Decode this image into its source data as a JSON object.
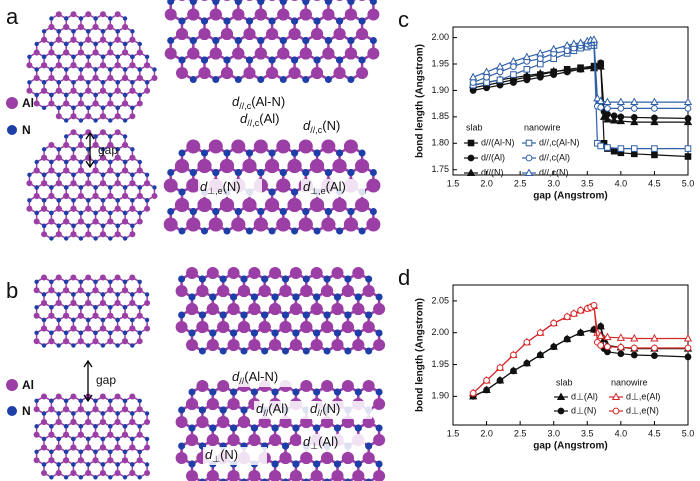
{
  "figure": {
    "panels": [
      {
        "label": "a",
        "legend": [
          "Al",
          "N"
        ],
        "gap_label": "gap",
        "annotations": [
          {
            "symbol": "d",
            "sub": "//,c",
            "text": "(Al-N)"
          },
          {
            "symbol": "d",
            "sub": "//,c",
            "text": "(Al)"
          },
          {
            "symbol": "d",
            "sub": "//,c",
            "text": "(N)"
          },
          {
            "symbol": "d",
            "sub": "⊥,e",
            "text": "(N)"
          },
          {
            "symbol": "d",
            "sub": "⊥,e",
            "text": "(Al)"
          }
        ]
      },
      {
        "label": "b",
        "legend": [
          "Al",
          "N"
        ],
        "gap_label": "gap",
        "annotations": [
          {
            "symbol": "d",
            "sub": "//",
            "text": "(Al-N)"
          },
          {
            "symbol": "d",
            "sub": "//",
            "text": "(Al)"
          },
          {
            "symbol": "d",
            "sub": "//",
            "text": "(N)"
          },
          {
            "symbol": "d",
            "sub": "⊥",
            "text": "(N)"
          },
          {
            "symbol": "d",
            "sub": "⊥",
            "text": "(Al)"
          }
        ]
      }
    ]
  },
  "chart_data": [
    {
      "type": "line",
      "panel_label": "c",
      "x_label": "gap (Angstrom)",
      "y_label": "bond length (Angstrom)",
      "xlim": [
        1.5,
        5.0
      ],
      "ylim": [
        1.74,
        2.02
      ],
      "xticks": [
        1.5,
        {
          "value": 2,
          "label": "2.0"
        },
        2.5,
        {
          "value": 3,
          "label": "3.0"
        },
        3.5,
        {
          "value": 4,
          "label": "4.0"
        },
        4.5,
        {
          "value": 5,
          "label": "5.0"
        }
      ],
      "yticks": [
        1.75,
        {
          "value": 1.8,
          "label": "1.80"
        },
        1.85,
        {
          "value": 1.9,
          "label": "1.90"
        },
        1.95,
        {
          "value": 2,
          "label": "2.00"
        }
      ],
      "legend_groups": [
        "slab",
        "nanowire"
      ],
      "series": [
        {
          "name": "d//(Al-N)",
          "color": "#111111",
          "marker": "square",
          "filled": true,
          "x": [
            1.8,
            2.0,
            2.2,
            2.4,
            2.6,
            2.8,
            3.0,
            3.2,
            3.4,
            3.6,
            3.7,
            3.75,
            3.8,
            3.9,
            4.0,
            4.2,
            4.5,
            5.0
          ],
          "values": [
            1.905,
            1.91,
            1.915,
            1.92,
            1.925,
            1.93,
            1.935,
            1.94,
            1.943,
            1.946,
            1.95,
            1.8,
            1.79,
            1.785,
            1.782,
            1.78,
            1.778,
            1.775
          ]
        },
        {
          "name": "d//(Al)",
          "color": "#111111",
          "marker": "circle",
          "filled": true,
          "x": [
            1.8,
            2.0,
            2.2,
            2.4,
            2.6,
            2.8,
            3.0,
            3.2,
            3.4,
            3.6,
            3.7,
            3.75,
            3.8,
            3.9,
            4.0,
            4.2,
            4.5,
            5.0
          ],
          "values": [
            1.9,
            1.905,
            1.91,
            1.915,
            1.92,
            1.925,
            1.93,
            1.935,
            1.94,
            1.945,
            1.952,
            1.86,
            1.855,
            1.852,
            1.85,
            1.849,
            1.848,
            1.847
          ]
        },
        {
          "name": "d//(N)",
          "color": "#111111",
          "marker": "triangle",
          "filled": true,
          "x": [
            1.8,
            2.0,
            2.2,
            2.4,
            2.6,
            2.8,
            3.0,
            3.2,
            3.4,
            3.6,
            3.7,
            3.75,
            3.8,
            3.9,
            4.0,
            4.2,
            4.5,
            5.0
          ],
          "values": [
            1.91,
            1.915,
            1.92,
            1.924,
            1.928,
            1.932,
            1.936,
            1.938,
            1.94,
            1.942,
            1.945,
            1.85,
            1.845,
            1.843,
            1.842,
            1.84,
            1.84,
            1.84
          ]
        },
        {
          "name": "d//,c(Al-N)",
          "color": "#2f5fa8",
          "marker": "square",
          "filled": false,
          "x": [
            1.8,
            2.0,
            2.2,
            2.4,
            2.6,
            2.8,
            3.0,
            3.2,
            3.3,
            3.4,
            3.5,
            3.55,
            3.6,
            3.65,
            3.7,
            3.8,
            4.0,
            4.2,
            4.5,
            5.0
          ],
          "values": [
            1.91,
            1.915,
            1.92,
            1.93,
            1.94,
            1.95,
            1.96,
            1.97,
            1.975,
            1.98,
            1.982,
            1.985,
            1.985,
            1.8,
            1.795,
            1.792,
            1.79,
            1.79,
            1.79,
            1.79
          ]
        },
        {
          "name": "d//,c(Al)",
          "color": "#2f5fa8",
          "marker": "circle",
          "filled": false,
          "x": [
            1.8,
            2.0,
            2.2,
            2.4,
            2.6,
            2.8,
            3.0,
            3.2,
            3.3,
            3.4,
            3.5,
            3.55,
            3.6,
            3.65,
            3.7,
            3.8,
            4.0,
            4.2,
            4.5,
            5.0
          ],
          "values": [
            1.915,
            1.925,
            1.935,
            1.945,
            1.955,
            1.96,
            1.97,
            1.975,
            1.98,
            1.985,
            1.988,
            1.99,
            1.99,
            1.87,
            1.868,
            1.866,
            1.866,
            1.866,
            1.866,
            1.866
          ]
        },
        {
          "name": "d//,c(N)",
          "color": "#2f5fa8",
          "marker": "triangle",
          "filled": false,
          "x": [
            1.8,
            2.0,
            2.2,
            2.4,
            2.6,
            2.8,
            3.0,
            3.2,
            3.3,
            3.4,
            3.5,
            3.55,
            3.6,
            3.65,
            3.7,
            3.8,
            4.0,
            4.2,
            4.5,
            5.0
          ],
          "values": [
            1.925,
            1.935,
            1.945,
            1.955,
            1.963,
            1.97,
            1.978,
            1.985,
            1.988,
            1.99,
            1.993,
            1.995,
            1.996,
            1.885,
            1.88,
            1.878,
            1.878,
            1.878,
            1.878,
            1.878
          ]
        }
      ]
    },
    {
      "type": "line",
      "panel_label": "d",
      "x_label": "gap (Angstrom)",
      "y_label": "bond length (Angstrom)",
      "xlim": [
        1.5,
        5.0
      ],
      "ylim": [
        1.855,
        2.075
      ],
      "xticks": [
        1.5,
        {
          "value": 2,
          "label": "2.0"
        },
        2.5,
        {
          "value": 3,
          "label": "3.0"
        },
        3.5,
        {
          "value": 4,
          "label": "4.0"
        },
        4.5,
        {
          "value": 5,
          "label": "5.0"
        }
      ],
      "yticks": [
        {
          "value": 1.9,
          "label": "1.90"
        },
        1.95,
        {
          "value": 2,
          "label": "2.00"
        },
        2.05
      ],
      "legend_groups": [
        "slab",
        "nanowire"
      ],
      "series": [
        {
          "name": "d⊥(Al)",
          "color": "#111111",
          "marker": "triangle",
          "filled": true,
          "x": [
            1.8,
            2.0,
            2.2,
            2.4,
            2.6,
            2.8,
            3.0,
            3.2,
            3.4,
            3.6,
            3.7,
            3.75,
            3.8,
            4.0,
            4.2,
            4.5,
            5.0
          ],
          "values": [
            1.9,
            1.91,
            1.925,
            1.94,
            1.952,
            1.965,
            1.978,
            1.99,
            2.0,
            2.005,
            2.01,
            1.99,
            1.98,
            1.977,
            1.975,
            1.975,
            1.975
          ]
        },
        {
          "name": "d⊥(N)",
          "color": "#111111",
          "marker": "circle",
          "filled": true,
          "x": [
            1.8,
            2.0,
            2.2,
            2.4,
            2.6,
            2.8,
            3.0,
            3.2,
            3.4,
            3.6,
            3.7,
            3.75,
            3.8,
            4.0,
            4.2,
            4.5,
            5.0
          ],
          "values": [
            1.9,
            1.91,
            1.925,
            1.94,
            1.952,
            1.965,
            1.978,
            1.99,
            2.0,
            2.005,
            2.01,
            1.975,
            1.97,
            1.967,
            1.965,
            1.964,
            1.962
          ]
        },
        {
          "name": "d⊥,e(Al)",
          "color": "#d62728",
          "marker": "triangle",
          "filled": false,
          "x": [
            1.8,
            2.0,
            2.2,
            2.4,
            2.6,
            2.8,
            3.0,
            3.2,
            3.3,
            3.4,
            3.5,
            3.55,
            3.6,
            3.65,
            3.7,
            3.8,
            4.0,
            4.2,
            4.5,
            5.0
          ],
          "values": [
            1.905,
            1.925,
            1.945,
            1.965,
            1.985,
            2.0,
            2.015,
            2.025,
            2.03,
            2.035,
            2.038,
            2.04,
            2.042,
            2.0,
            1.995,
            1.993,
            1.992,
            1.991,
            1.991,
            1.991
          ]
        },
        {
          "name": "d⊥,e(N)",
          "color": "#d62728",
          "marker": "circle",
          "filled": false,
          "x": [
            1.8,
            2.0,
            2.2,
            2.4,
            2.6,
            2.8,
            3.0,
            3.2,
            3.3,
            3.4,
            3.5,
            3.55,
            3.6,
            3.65,
            3.7,
            3.8,
            4.0,
            4.2,
            4.5,
            5.0
          ],
          "values": [
            1.905,
            1.925,
            1.945,
            1.965,
            1.985,
            2.0,
            2.015,
            2.025,
            2.03,
            2.035,
            2.038,
            2.04,
            2.043,
            1.985,
            1.98,
            1.978,
            1.977,
            1.976,
            1.976,
            1.976
          ]
        }
      ]
    }
  ]
}
